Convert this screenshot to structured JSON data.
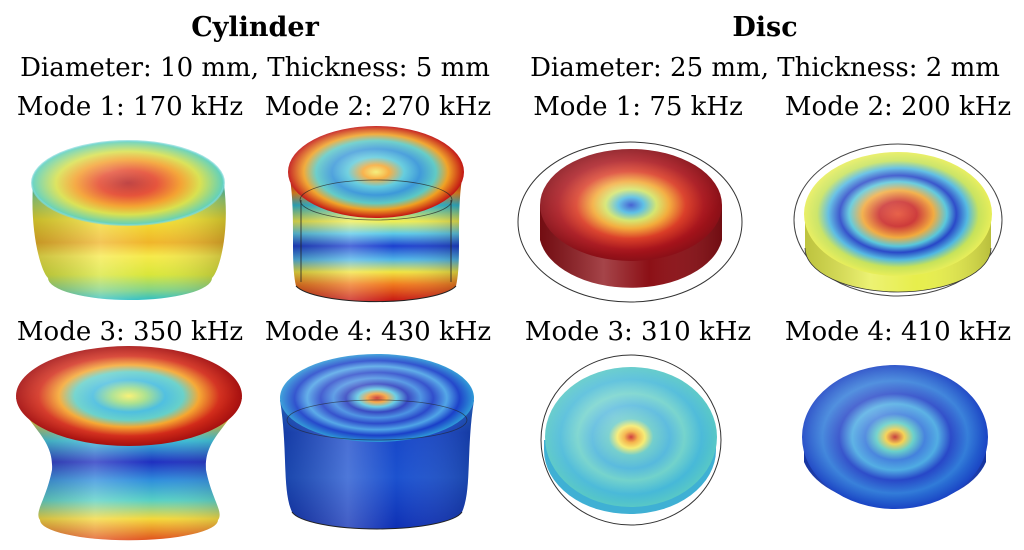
{
  "groups": [
    {
      "title": "Cylinder",
      "dims": "Diameter: 10 mm, Thickness: 5 mm",
      "modes": [
        {
          "label": "Mode 1: 170 kHz"
        },
        {
          "label": "Mode 2: 270 kHz"
        },
        {
          "label": "Mode 3: 350 kHz"
        },
        {
          "label": "Mode 4: 430 kHz"
        }
      ]
    },
    {
      "title": "Disc",
      "dims": "Diameter: 25 mm, Thickness: 2 mm",
      "modes": [
        {
          "label": "Mode 1: 75 kHz"
        },
        {
          "label": "Mode 2: 200 kHz"
        },
        {
          "label": "Mode 3: 310 kHz"
        },
        {
          "label": "Mode 4: 410 kHz"
        }
      ]
    }
  ]
}
